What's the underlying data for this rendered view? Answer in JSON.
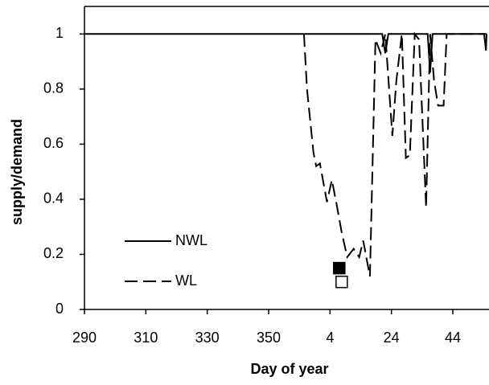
{
  "chart_data": {
    "type": "line",
    "xlabel": "Day of year",
    "ylabel": "supply/demand",
    "xlim": [
      290,
      421
    ],
    "ylim": [
      0,
      1.1
    ],
    "xticks": [
      290,
      310,
      330,
      350,
      {
        "value": 370,
        "label": "4"
      },
      {
        "value": 390,
        "label": "24"
      },
      {
        "value": 410,
        "label": "44"
      }
    ],
    "yticks": [
      0,
      0.2,
      0.4,
      0.6,
      0.8,
      1
    ],
    "legend": "lower left",
    "series": [
      {
        "name": "NWL",
        "color": "#000000",
        "dash": "solid",
        "x": [
          290,
          387,
          388,
          389,
          401.8,
          402.6,
          403.4,
          420.2,
          420.8,
          421
        ],
        "values": [
          1,
          1,
          0.93,
          1,
          1,
          0.86,
          1,
          1,
          0.94,
          1
        ]
      },
      {
        "name": "WL",
        "color": "#000000",
        "dash": "dashed",
        "x": [
          361.5,
          362.5,
          364.6,
          365.5,
          366.7,
          369,
          370.6,
          372,
          373.8,
          375.6,
          377.7,
          379.5,
          380.8,
          383,
          384.8,
          386.5,
          388,
          390.3,
          391.6,
          393.4,
          394.7,
          396,
          397.6,
          399,
          401.3,
          402.6,
          403.9,
          405.2,
          407,
          408,
          421
        ],
        "values": [
          1,
          0.8,
          0.57,
          0.52,
          0.53,
          0.39,
          0.47,
          0.39,
          0.28,
          0.19,
          0.22,
          0.19,
          0.25,
          0.12,
          0.98,
          0.93,
          1,
          0.63,
          0.83,
          1,
          0.55,
          0.56,
          1,
          0.98,
          0.37,
          1,
          0.83,
          0.74,
          0.74,
          1,
          1
        ]
      }
    ],
    "markers": [
      {
        "x": 373,
        "y": 0.15,
        "fill": "#000000"
      },
      {
        "x": 373.8,
        "y": 0.1,
        "fill": "#ffffff"
      }
    ]
  }
}
